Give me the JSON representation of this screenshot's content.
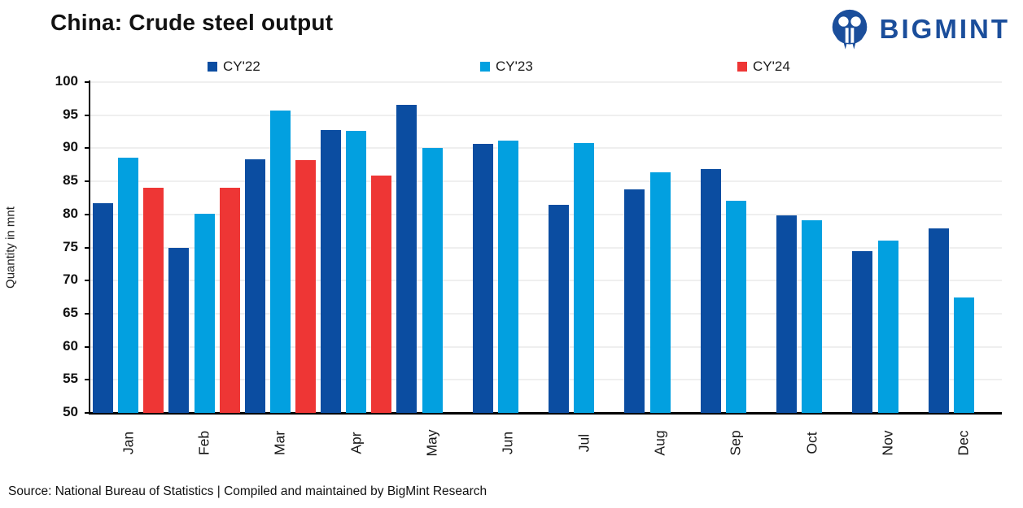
{
  "title": "China: Crude steel output",
  "logo": {
    "text": "BIGMINT",
    "color": "#1b4e9b",
    "icon": "bigmint-monkey-icon"
  },
  "source": "Source: National Bureau of Statistics | Compiled and maintained by BigMint Research",
  "chart_data": {
    "type": "bar",
    "title": "China: Crude steel output",
    "xlabel": "",
    "ylabel": "Quantity in mnt",
    "categories": [
      "Jan",
      "Feb",
      "Mar",
      "Apr",
      "May",
      "Jun",
      "Jul",
      "Aug",
      "Sep",
      "Oct",
      "Nov",
      "Dec"
    ],
    "series": [
      {
        "name": "CY'22",
        "color": "#0b4da1",
        "values": [
          81.7,
          75.0,
          88.3,
          92.8,
          96.6,
          90.7,
          81.4,
          83.8,
          86.9,
          79.8,
          74.5,
          77.9
        ]
      },
      {
        "name": "CY'23",
        "color": "#02a0e0",
        "values": [
          88.6,
          80.1,
          95.7,
          92.6,
          90.1,
          91.1,
          90.8,
          86.4,
          82.1,
          79.1,
          76.0,
          67.4
        ]
      },
      {
        "name": "CY'24",
        "color": "#ee3635",
        "values": [
          84.0,
          84.0,
          88.2,
          85.9,
          null,
          null,
          null,
          null,
          null,
          null,
          null,
          null
        ]
      }
    ],
    "ylim": [
      50,
      100
    ],
    "ytick_step": 5,
    "grid": true,
    "legend_position": "top",
    "gridline_color": "#efefef"
  }
}
